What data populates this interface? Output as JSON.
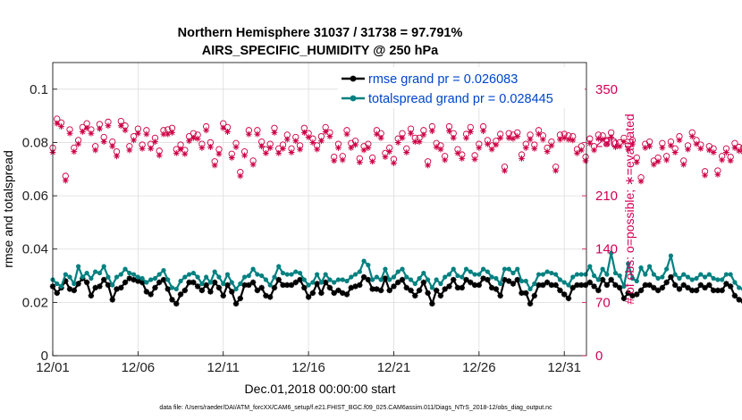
{
  "chart_data": {
    "type": "line",
    "title_line1": "Northern Hemisphere 31037 / 31738 = 97.791%",
    "title_line2": "AIRS_SPECIFIC_HUMIDITY @ 250 hPa",
    "xlabel": "Dec.01,2018 00:00:00 start",
    "ylabel": "rmse and totalspread",
    "ylabel_right": "# of obs: o=possible; ∗=evaluated",
    "xlim": [
      0,
      31.3
    ],
    "ylim": [
      0,
      0.11
    ],
    "ylim_right": [
      0,
      385
    ],
    "x_ticks": [
      0,
      5,
      10,
      15,
      20,
      25,
      30
    ],
    "x_tick_labels": [
      "12/01",
      "12/06",
      "12/11",
      "12/16",
      "12/21",
      "12/26",
      "12/31"
    ],
    "y_ticks": [
      0,
      0.02,
      0.04,
      0.06,
      0.08,
      0.1
    ],
    "y_tick_labels": [
      "0",
      "0.02",
      "0.04",
      "0.06",
      "0.08",
      "0.1"
    ],
    "y_right_ticks": [
      0,
      70,
      140,
      210,
      280,
      350
    ],
    "y_right_tick_labels": [
      "0",
      "70",
      "140",
      "210",
      "280",
      "350"
    ],
    "grid": true,
    "legend_location": "top-right",
    "series": [
      {
        "name": "rmse grand pr = 0.026083",
        "color": "#000000",
        "marker": "asterisk",
        "x_step": 0.25,
        "values": [
          0.026,
          0.0235,
          0.0255,
          0.028,
          0.025,
          0.0245,
          0.027,
          0.029,
          0.0275,
          0.0225,
          0.0255,
          0.026,
          0.0285,
          0.0265,
          0.021,
          0.025,
          0.0255,
          0.0275,
          0.029,
          0.0285,
          0.028,
          0.0275,
          0.024,
          0.023,
          0.0255,
          0.0275,
          0.0285,
          0.025,
          0.021,
          0.0195,
          0.023,
          0.0245,
          0.0275,
          0.0275,
          0.026,
          0.0245,
          0.0265,
          0.024,
          0.0275,
          0.0255,
          0.0225,
          0.0265,
          0.024,
          0.0195,
          0.0215,
          0.0265,
          0.0265,
          0.0275,
          0.0245,
          0.0255,
          0.0225,
          0.022,
          0.0255,
          0.0285,
          0.0265,
          0.0265,
          0.0265,
          0.0275,
          0.0285,
          0.0255,
          0.022,
          0.0235,
          0.027,
          0.0235,
          0.0275,
          0.0255,
          0.0235,
          0.0245,
          0.0235,
          0.023,
          0.0255,
          0.026,
          0.0265,
          0.0295,
          0.0285,
          0.025,
          0.025,
          0.0245,
          0.029,
          0.0245,
          0.026,
          0.0275,
          0.0285,
          0.0255,
          0.0245,
          0.0225,
          0.0245,
          0.0275,
          0.0235,
          0.0195,
          0.0245,
          0.0225,
          0.025,
          0.026,
          0.0285,
          0.0255,
          0.0255,
          0.0285,
          0.0275,
          0.0265,
          0.0265,
          0.029,
          0.0285,
          0.0255,
          0.025,
          0.0225,
          0.0285,
          0.028,
          0.027,
          0.0285,
          0.0235,
          0.0235,
          0.0195,
          0.0225,
          0.0265,
          0.0265,
          0.0275,
          0.0265,
          0.0265,
          0.0245,
          0.023,
          0.0215,
          0.0255,
          0.0265,
          0.0265,
          0.0265,
          0.0275,
          0.026,
          0.0245,
          0.0285,
          0.0265,
          0.0285,
          0.0265,
          0.0255,
          0.0215,
          0.0235,
          0.0225,
          0.023,
          0.0245,
          0.0265,
          0.0265,
          0.0255,
          0.0245,
          0.0255,
          0.0275,
          0.0295,
          0.0265,
          0.025,
          0.0265,
          0.0255,
          0.0245,
          0.0245,
          0.0265,
          0.0255,
          0.0265,
          0.0245,
          0.0245,
          0.0245,
          0.027,
          0.026,
          0.0225,
          0.021,
          0.0205,
          0.0215,
          0.0275,
          0.0245,
          0.027,
          0.0295,
          0.0255,
          0.0245,
          0.0225,
          0.025,
          0.0265,
          0.0245,
          0.0185,
          0.0255,
          0.0245,
          0.0275,
          0.0255,
          0.0235,
          0.0205,
          0.019,
          0.0205,
          0.0245,
          0.0275,
          0.0245,
          0.0215,
          0.0235,
          0.018,
          0.0215,
          0.0235,
          0.0255,
          0.0245,
          0.0255,
          0.0265,
          0.0245,
          0.0285,
          0.0215,
          0.0245,
          0.0225,
          0.0215,
          0.0205,
          0.0245,
          0.024,
          0.0215,
          0.0185,
          0.0235,
          0.0205,
          0.0215,
          0.0225,
          0.0245,
          0.023,
          0.0205,
          0.0255,
          0.025,
          0.0275,
          0.0245,
          0.0235,
          0.0255,
          0.0255,
          0.0265,
          0.0225,
          0.0255,
          0.0245,
          0.0225,
          0.0245,
          0.0245,
          0.025,
          0.0265,
          0.023,
          0.0235,
          0.0255,
          0.0225,
          0.0225,
          0.0275,
          0.0245,
          0.0205,
          0.0215,
          0.0255,
          0.0235,
          0.022,
          0.0225,
          0.0245,
          0.0215,
          0.0195,
          0.0255,
          0.0275,
          0.025,
          0.0265,
          0.0195,
          0.0345,
          0.021,
          0.0225
        ]
      },
      {
        "name": "totalspread grand pr = 0.028445",
        "color": "#008080",
        "marker": "dot",
        "x_step": 0.25,
        "values": [
          0.0285,
          0.027,
          0.026,
          0.0305,
          0.0295,
          0.027,
          0.0335,
          0.0295,
          0.031,
          0.029,
          0.0315,
          0.031,
          0.0335,
          0.0295,
          0.0265,
          0.0295,
          0.0305,
          0.0325,
          0.031,
          0.0305,
          0.0295,
          0.029,
          0.0275,
          0.0285,
          0.029,
          0.0305,
          0.032,
          0.0285,
          0.0255,
          0.025,
          0.028,
          0.0295,
          0.0305,
          0.031,
          0.0295,
          0.027,
          0.0295,
          0.0275,
          0.0315,
          0.0295,
          0.027,
          0.0305,
          0.0275,
          0.025,
          0.027,
          0.0295,
          0.03,
          0.0325,
          0.0305,
          0.03,
          0.0285,
          0.0265,
          0.0295,
          0.0335,
          0.031,
          0.0305,
          0.0305,
          0.0315,
          0.031,
          0.0285,
          0.0265,
          0.0275,
          0.0305,
          0.0275,
          0.0305,
          0.0285,
          0.0275,
          0.0285,
          0.0285,
          0.028,
          0.0295,
          0.0305,
          0.0315,
          0.0355,
          0.034,
          0.0285,
          0.0295,
          0.0285,
          0.0325,
          0.0285,
          0.0295,
          0.0315,
          0.0325,
          0.0295,
          0.0285,
          0.027,
          0.029,
          0.031,
          0.0285,
          0.0255,
          0.0285,
          0.027,
          0.0295,
          0.0305,
          0.0325,
          0.03,
          0.0295,
          0.0325,
          0.0315,
          0.0305,
          0.0305,
          0.0325,
          0.0315,
          0.0295,
          0.029,
          0.027,
          0.0325,
          0.0325,
          0.031,
          0.0325,
          0.028,
          0.028,
          0.025,
          0.027,
          0.0305,
          0.0305,
          0.0315,
          0.031,
          0.0305,
          0.0285,
          0.0275,
          0.0265,
          0.0295,
          0.0305,
          0.0305,
          0.0305,
          0.0335,
          0.03,
          0.0285,
          0.0325,
          0.0305,
          0.0385,
          0.031,
          0.03,
          0.026,
          0.0345,
          0.029,
          0.028,
          0.033,
          0.0305,
          0.0335,
          0.0305,
          0.029,
          0.0295,
          0.0325,
          0.0375,
          0.0305,
          0.029,
          0.0305,
          0.0295,
          0.0285,
          0.029,
          0.0305,
          0.0295,
          0.0305,
          0.029,
          0.0285,
          0.0285,
          0.0305,
          0.0305,
          0.0275,
          0.0255,
          0.025,
          0.026,
          0.0315,
          0.0285,
          0.0315,
          0.0345,
          0.0295,
          0.0285,
          0.027,
          0.0295,
          0.0305,
          0.0285,
          0.024,
          0.0295,
          0.0295,
          0.032,
          0.0405,
          0.0345,
          0.028,
          0.025,
          0.041,
          0.0325,
          0.041,
          0.033,
          0.028,
          0.0285,
          0.026,
          0.0265,
          0.0285,
          0.0305,
          0.029,
          0.0305,
          0.0305,
          0.029,
          0.0325,
          0.027,
          0.0295,
          0.0275,
          0.0265,
          0.0255,
          0.0295,
          0.0285,
          0.0265,
          0.0245,
          0.0285,
          0.0255,
          0.0265,
          0.0275,
          0.0295,
          0.028,
          0.0255,
          0.0305,
          0.0295,
          0.0325,
          0.0295,
          0.028,
          0.0305,
          0.0305,
          0.031,
          0.027,
          0.0305,
          0.0295,
          0.0275,
          0.0295,
          0.0295,
          0.0295,
          0.0315,
          0.028,
          0.0285,
          0.0305,
          0.0275,
          0.027,
          0.0325,
          0.0295,
          0.0255,
          0.0265,
          0.0305,
          0.0285,
          0.0265,
          0.0275,
          0.0295,
          0.0265,
          0.025,
          0.0305,
          0.0325,
          0.03,
          0.0315,
          0.0255,
          0.0325,
          0.0275,
          0.0275
        ]
      },
      {
        "name": "obs possible",
        "color": "#cc0044",
        "marker": "circle",
        "axis": "right",
        "x_step": 0.25,
        "values": [
          273,
          311,
          306,
          236,
          297,
          273,
          283,
          300,
          305,
          297,
          275,
          304,
          287,
          307,
          281,
          268,
          308,
          302,
          275,
          288,
          298,
          277,
          296,
          278,
          286,
          269,
          296,
          297,
          299,
          271,
          277,
          270,
          288,
          292,
          290,
          278,
          301,
          280,
          255,
          271,
          305,
          300,
          265,
          279,
          241,
          268,
          296,
          256,
          296,
          281,
          271,
          278,
          299,
          272,
          277,
          290,
          272,
          287,
          276,
          299,
          292,
          285,
          276,
          288,
          300,
          293,
          261,
          278,
          262,
          296,
          279,
          282,
          259,
          275,
          278,
          260,
          296,
          292,
          266,
          273,
          258,
          285,
          292,
          272,
          298,
          286,
          286,
          296,
          255,
          301,
          279,
          276,
          262,
          301,
          292,
          271,
          264,
          291,
          300,
          263,
          278,
          301,
          283,
          276,
          282,
          291,
          248,
          292,
          290,
          293,
          264,
          278,
          290,
          277,
          296,
          289,
          273,
          281,
          248,
          290,
          291,
          289,
          288,
          271,
          275,
          261,
          285,
          275,
          290,
          289,
          283,
          293,
          279,
          280,
          286,
          276,
          283,
          260,
          234,
          278,
          281,
          256,
          260,
          279,
          262,
          281,
          272,
          288,
          256,
          276,
          293,
          283,
          277,
          242,
          275,
          272,
          243,
          262,
          272,
          261,
          279,
          274,
          273,
          263,
          249,
          256,
          261,
          276,
          292,
          265,
          290,
          270,
          287,
          256,
          266,
          265,
          264,
          280,
          288,
          274,
          289,
          265,
          262,
          280,
          289,
          263,
          273,
          278,
          290,
          267,
          279,
          278,
          262,
          264,
          278,
          278,
          289,
          270,
          276,
          271,
          268,
          246,
          273,
          283,
          263,
          271,
          249,
          270,
          287,
          280,
          263,
          289,
          259,
          276,
          278,
          261,
          179,
          272,
          281,
          272,
          257,
          243,
          226,
          242,
          277,
          283,
          266,
          261,
          276,
          270,
          260,
          272,
          268,
          254,
          279,
          266,
          271,
          280,
          243,
          244,
          288,
          248,
          275,
          242,
          275,
          266,
          251,
          258,
          270,
          259,
          282,
          284,
          245,
          272,
          277,
          282,
          287
        ]
      },
      {
        "name": "obs evaluated",
        "color": "#cc0044",
        "marker": "asterisk",
        "axis": "right",
        "x_step": 0.25,
        "values": [
          267,
          305,
          301,
          230,
          292,
          268,
          278,
          294,
          299,
          292,
          270,
          298,
          281,
          302,
          275,
          262,
          302,
          296,
          270,
          283,
          292,
          272,
          291,
          272,
          281,
          263,
          291,
          291,
          293,
          266,
          271,
          265,
          282,
          286,
          285,
          273,
          296,
          274,
          250,
          265,
          299,
          294,
          260,
          274,
          236,
          263,
          291,
          251,
          291,
          275,
          266,
          273,
          293,
          266,
          272,
          284,
          267,
          282,
          271,
          293,
          287,
          280,
          271,
          282,
          294,
          288,
          256,
          273,
          257,
          291,
          273,
          277,
          254,
          270,
          273,
          255,
          291,
          286,
          261,
          268,
          253,
          280,
          286,
          267,
          292,
          281,
          281,
          290,
          250,
          295,
          274,
          271,
          257,
          295,
          286,
          266,
          259,
          286,
          294,
          258,
          273,
          295,
          278,
          271,
          277,
          286,
          243,
          286,
          285,
          288,
          259,
          273,
          284,
          272,
          291,
          284,
          268,
          276,
          243,
          284,
          286,
          284,
          283,
          266,
          270,
          256,
          279,
          270,
          285,
          284,
          278,
          287,
          274,
          275,
          281,
          271,
          278,
          254,
          229,
          273,
          275,
          251,
          255,
          273,
          257,
          276,
          267,
          283,
          251,
          271,
          288,
          278,
          272,
          237,
          270,
          267,
          238,
          257,
          267,
          256,
          273,
          269,
          268,
          258,
          244,
          251,
          255,
          271,
          286,
          260,
          285,
          265,
          282,
          251,
          261,
          260,
          259,
          275,
          283,
          269,
          283,
          260,
          257,
          275,
          284,
          258,
          268,
          273,
          285,
          262,
          274,
          273,
          256,
          259,
          273,
          273,
          284,
          265,
          271,
          266,
          263,
          241,
          268,
          277,
          258,
          266,
          244,
          264,
          282,
          275,
          258,
          284,
          254,
          270,
          273,
          256,
          174,
          267,
          276,
          267,
          252,
          238,
          221,
          237,
          272,
          277,
          261,
          256,
          271,
          265,
          255,
          267,
          263,
          249,
          274,
          261,
          265,
          275,
          238,
          239,
          282,
          243,
          270,
          237,
          270,
          261,
          246,
          253,
          265,
          254,
          277,
          279,
          240,
          267,
          272,
          277,
          281
        ]
      }
    ],
    "footnote": "data file: /Users/raeder/DAI/ATM_forcXX/CAM6_setup/f.e21.FHIST_BGC.f09_025.CAM6assim.011/Diags_NTrS_2018-12/obs_diag_output.nc"
  },
  "legend": {
    "items": [
      {
        "label": "rmse grand pr = 0.026083"
      },
      {
        "label": "totalspread grand pr = 0.028445"
      }
    ]
  }
}
